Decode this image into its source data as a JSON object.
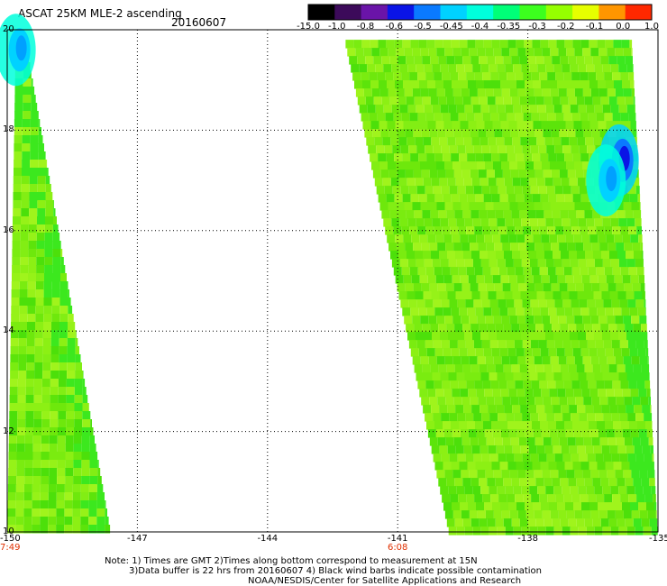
{
  "title": "ASCAT 25KM MLE-2 ascending",
  "date": "20160607",
  "colorbar": {
    "labels": [
      "-15.0",
      "-1.0",
      "-0.8",
      "-0.6",
      "-0.5",
      "-0.45",
      "-0.4",
      "-0.35",
      "-0.3",
      "-0.2",
      "-0.1",
      "0.0",
      "1.0"
    ],
    "colors": [
      "#000000",
      "#3c0a5a",
      "#6a14a8",
      "#0a14e6",
      "#0a7aff",
      "#00d2ff",
      "#00ffdc",
      "#00ff78",
      "#3cff1e",
      "#96ff00",
      "#e6ff00",
      "#ff9600",
      "#ff2800"
    ]
  },
  "map": {
    "lon_range": [
      -150,
      -135
    ],
    "lat_range": [
      10,
      20
    ],
    "lon_ticks": [
      "-150",
      "-147",
      "-144",
      "-141",
      "-138",
      "-135"
    ],
    "lat_ticks": [
      "20",
      "18",
      "16",
      "14",
      "12",
      "10"
    ],
    "grid_lons": [
      -147,
      -144,
      -141,
      -138
    ],
    "grid_lats": [
      18,
      16,
      14,
      12
    ],
    "swaths": [
      {
        "name": "west",
        "top_left": -149.8,
        "top_right": -149.6,
        "bottom_left": -150.0,
        "bottom_right": -147.6,
        "lat_top": 20,
        "lat_bottom": 10
      },
      {
        "name": "east",
        "top_left": -142.2,
        "top_right": -135.6,
        "bottom_left": -139.8,
        "bottom_right": -135.0,
        "lat_top": 19.8,
        "lat_bottom": 10
      }
    ],
    "blue_patches": [
      {
        "lon": -135.9,
        "lat": 17.4,
        "level": "deep"
      },
      {
        "lon": -136.2,
        "lat": 17.0,
        "level": "mid"
      },
      {
        "lon": -149.8,
        "lat": 19.6,
        "level": "mid"
      }
    ]
  },
  "times": [
    {
      "label": "7:49",
      "lon": -150
    },
    {
      "label": "6:08",
      "lon": -141
    }
  ],
  "notes": [
    "Note: 1) Times are GMT 2)Times along bottom correspond to measurement at 15N",
    "3)Data buffer is 22 hrs from 20160607 4) Black wind barbs indicate possible contamination",
    "NOAA/NESDIS/Center for Satellite Applications and Research"
  ]
}
